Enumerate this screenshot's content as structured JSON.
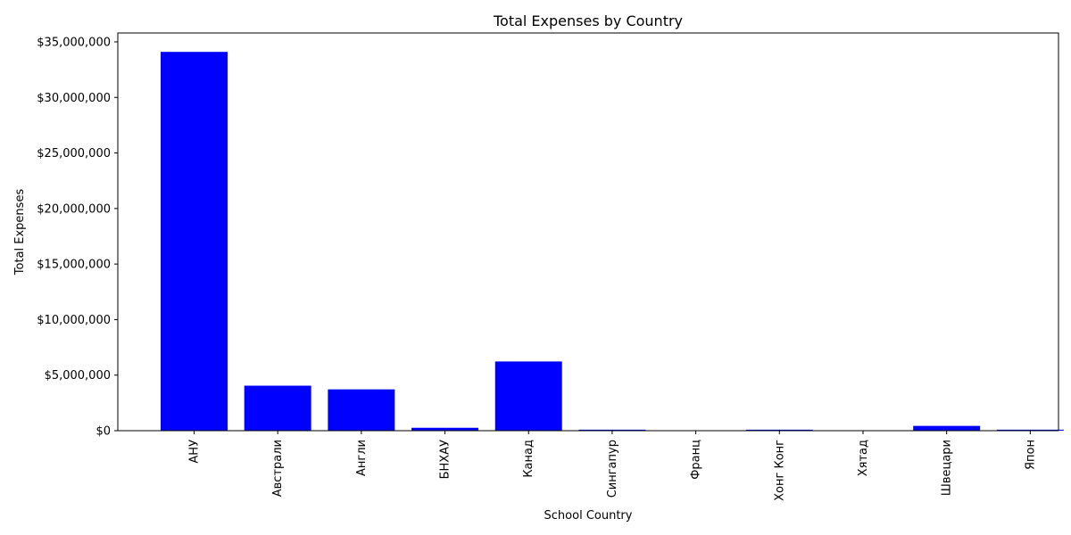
{
  "chart_data": {
    "type": "bar",
    "title": "Total Expenses by Country",
    "xlabel": "School Country",
    "ylabel": "Total Expenses",
    "categories": [
      "АНУ",
      "Австрали",
      "Англи",
      "БНХАУ",
      "Канад",
      "Сингапур",
      "Франц",
      "Хонг Конг",
      "Хятад",
      "Швецари",
      "Япон"
    ],
    "values": [
      34100000,
      4050000,
      3720000,
      260000,
      6230000,
      90000,
      20000,
      90000,
      20000,
      430000,
      90000
    ],
    "ylim": [
      0,
      35800000
    ],
    "yticks": [
      0,
      5000000,
      10000000,
      15000000,
      20000000,
      25000000,
      30000000,
      35000000
    ],
    "ytick_labels": [
      "$0",
      "$5,000,000",
      "$10,000,000",
      "$15,000,000",
      "$20,000,000",
      "$25,000,000",
      "$30,000,000",
      "$35,000,000"
    ],
    "bar_color": "#0000ff",
    "grid": false,
    "legend": "none"
  }
}
